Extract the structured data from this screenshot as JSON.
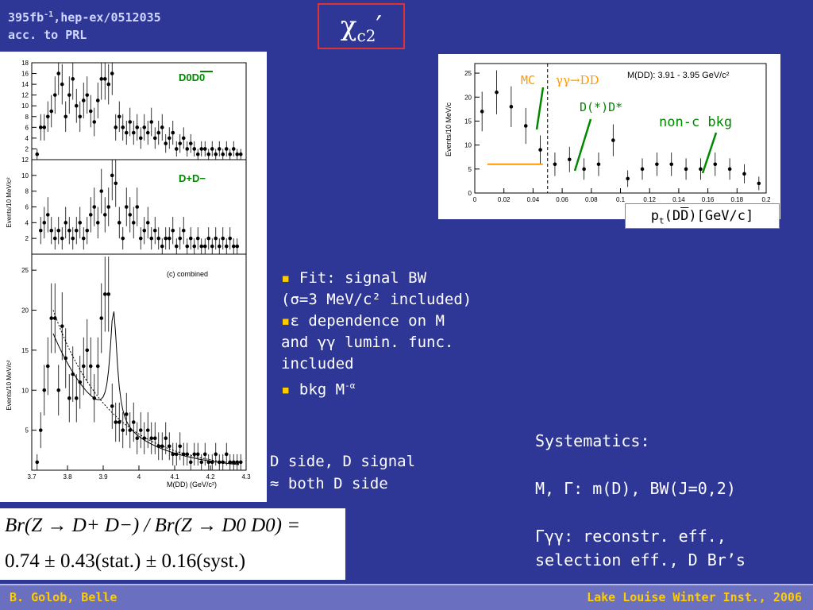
{
  "header": {
    "ref_line1": "395fb",
    "ref_sup": "-1",
    "ref_line1_tail": ",hep-ex/0512035",
    "ref_line2": "acc. to PRL",
    "title": "χ",
    "title_sub": "c2",
    "title_prime": "′"
  },
  "left_panel": {
    "top_label": "D0D0",
    "mid_label": "D+D−",
    "combined_label": "(c) combined",
    "ylabel_top": "Events/10 MeV/c²",
    "ylabel_bottom": "Events/10 MeV/c²",
    "xlabel": "M(DD) (GeV/c²)"
  },
  "right_panel": {
    "title": "M(DD): 3.91 - 3.95 GeV/c²",
    "ylabel": "Events/10 MeV/c",
    "label_mc": "MC",
    "label_gg": "γγ→DD",
    "label_dstar": "D(*)D*",
    "label_nonc": "non-c bkg",
    "xlabel": "pt(DD)[GeV/c]"
  },
  "chart_data": [
    {
      "type": "scatter",
      "panel": "top (D0D0)",
      "xlim": [
        3.7,
        4.3
      ],
      "ylim": [
        0,
        18
      ],
      "yticks": [
        2,
        4,
        6,
        8,
        10,
        12,
        14,
        16,
        18
      ],
      "x": [
        3.715,
        3.725,
        3.735,
        3.745,
        3.755,
        3.765,
        3.775,
        3.785,
        3.795,
        3.805,
        3.815,
        3.825,
        3.835,
        3.845,
        3.855,
        3.865,
        3.875,
        3.885,
        3.895,
        3.905,
        3.915,
        3.925,
        3.935,
        3.945,
        3.955,
        3.965,
        3.975,
        3.985,
        3.995,
        4.005,
        4.015,
        4.025,
        4.035,
        4.045,
        4.055,
        4.065,
        4.075,
        4.085,
        4.095,
        4.105,
        4.115,
        4.125,
        4.135,
        4.145,
        4.155,
        4.165,
        4.175,
        4.185,
        4.195,
        4.205,
        4.215,
        4.225,
        4.235,
        4.245,
        4.255,
        4.265,
        4.275,
        4.285
      ],
      "y": [
        1,
        6,
        6,
        8,
        9,
        12,
        16,
        14,
        8,
        12,
        15,
        10,
        8,
        11,
        12,
        9,
        7,
        11,
        15,
        15,
        14,
        16,
        6,
        8,
        6,
        5,
        7,
        5,
        6,
        4,
        6,
        5,
        7,
        4,
        5,
        6,
        3,
        4,
        5,
        2,
        3,
        4,
        2,
        3,
        2,
        1,
        2,
        2,
        1,
        2,
        1,
        2,
        1,
        2,
        1,
        2,
        1,
        1
      ]
    },
    {
      "type": "scatter",
      "panel": "middle (D+D−)",
      "xlim": [
        3.7,
        4.3
      ],
      "ylim": [
        0,
        12
      ],
      "yticks": [
        2,
        4,
        6,
        8,
        10,
        12
      ],
      "x": [
        3.725,
        3.735,
        3.745,
        3.755,
        3.765,
        3.775,
        3.785,
        3.795,
        3.805,
        3.815,
        3.825,
        3.835,
        3.845,
        3.855,
        3.865,
        3.875,
        3.885,
        3.895,
        3.905,
        3.915,
        3.925,
        3.935,
        3.945,
        3.955,
        3.965,
        3.975,
        3.985,
        3.995,
        4.005,
        4.015,
        4.025,
        4.035,
        4.045,
        4.055,
        4.065,
        4.075,
        4.085,
        4.095,
        4.105,
        4.115,
        4.125,
        4.135,
        4.145,
        4.155,
        4.165,
        4.175,
        4.185,
        4.195,
        4.205,
        4.215,
        4.225,
        4.235,
        4.245,
        4.255,
        4.265,
        4.275
      ],
      "y": [
        3,
        4,
        5,
        3,
        2,
        3,
        2,
        4,
        3,
        2,
        3,
        4,
        2,
        3,
        5,
        6,
        4,
        8,
        5,
        6,
        10,
        9,
        4,
        2,
        6,
        5,
        4,
        6,
        2,
        3,
        4,
        2,
        3,
        2,
        1,
        2,
        2,
        3,
        1,
        2,
        3,
        1,
        2,
        1,
        2,
        1,
        1,
        2,
        1,
        2,
        1,
        2,
        1,
        2,
        1,
        1
      ]
    },
    {
      "type": "scatter",
      "panel": "bottom (c) combined",
      "xlim": [
        3.7,
        4.3
      ],
      "ylim": [
        0,
        27
      ],
      "yticks": [
        5,
        10,
        15,
        20,
        25
      ],
      "xticks": [
        3.7,
        3.8,
        3.9,
        4.0,
        4.1,
        4.2,
        4.3
      ],
      "x": [
        3.715,
        3.725,
        3.735,
        3.745,
        3.755,
        3.765,
        3.775,
        3.785,
        3.795,
        3.805,
        3.815,
        3.825,
        3.835,
        3.845,
        3.855,
        3.865,
        3.875,
        3.885,
        3.895,
        3.905,
        3.915,
        3.925,
        3.935,
        3.945,
        3.955,
        3.965,
        3.975,
        3.985,
        3.995,
        4.005,
        4.015,
        4.025,
        4.035,
        4.045,
        4.055,
        4.065,
        4.075,
        4.085,
        4.095,
        4.105,
        4.115,
        4.125,
        4.135,
        4.145,
        4.155,
        4.165,
        4.175,
        4.185,
        4.195,
        4.205,
        4.215,
        4.225,
        4.235,
        4.245,
        4.255,
        4.265,
        4.275,
        4.285
      ],
      "y": [
        1,
        5,
        10,
        13,
        19,
        19,
        10,
        18,
        14,
        9,
        12,
        9,
        11,
        13,
        15,
        13,
        9,
        13,
        19,
        22,
        22,
        8,
        6,
        6,
        5,
        7,
        5,
        6,
        4,
        5,
        4,
        5,
        4,
        4,
        3,
        3,
        4,
        3,
        2,
        2,
        3,
        2,
        2,
        1,
        2,
        2,
        1,
        2,
        1,
        1,
        2,
        1,
        1,
        2,
        1,
        1,
        1,
        1
      ]
    },
    {
      "type": "scatter",
      "panel": "right pt distribution",
      "title": "M(DD): 3.91 - 3.95 GeV/c²",
      "xlim": [
        0,
        0.2
      ],
      "ylim": [
        0,
        27
      ],
      "xticks": [
        0,
        0.02,
        0.04,
        0.06,
        0.08,
        0.1,
        0.12,
        0.14,
        0.16,
        0.18,
        0.2
      ],
      "yticks": [
        0,
        5,
        10,
        15,
        20,
        25
      ],
      "x": [
        0.005,
        0.015,
        0.025,
        0.035,
        0.045,
        0.055,
        0.065,
        0.075,
        0.085,
        0.095,
        0.105,
        0.115,
        0.125,
        0.135,
        0.145,
        0.155,
        0.165,
        0.175,
        0.185,
        0.195
      ],
      "y": [
        17,
        21,
        18,
        14,
        9,
        6,
        7,
        5,
        6,
        11,
        3,
        5,
        6,
        6,
        5,
        5,
        6,
        5,
        4,
        2
      ],
      "cut_x": 0.05
    }
  ],
  "bullets": {
    "b1_line1": "Fit: signal BW",
    "b1_line2": "(σ=3 MeV/c² included)",
    "b2_line1": "ε dependence on M",
    "b2_line2": "and γγ lumin. func.",
    "b2_line3": "included",
    "b3": "bkg M",
    "b3_sup": "-α"
  },
  "dside": {
    "line1": "D side, D signal",
    "line2": "≈ both D side"
  },
  "systematics": {
    "head": "Systematics:",
    "l1": "M, Γ: m(D), BW(J=0,2)",
    "l2": "Γγγ: reconstr. eff.,",
    "l3": "selection eff., D Br’s"
  },
  "formula": {
    "line1": "Br(Z → D+ D−) / Br(Z → D0 D0) =",
    "line2": "0.74 ± 0.43(stat.) ± 0.16(syst.)"
  },
  "footer": {
    "left": "B. Golob, Belle",
    "right": "Lake Louise Winter Inst., 2006"
  },
  "colors": {
    "background": "#2f3796",
    "accent": "#ffcc00",
    "title_border": "#dd3333",
    "label_green": "#008800",
    "label_orange": "#ff9900"
  }
}
